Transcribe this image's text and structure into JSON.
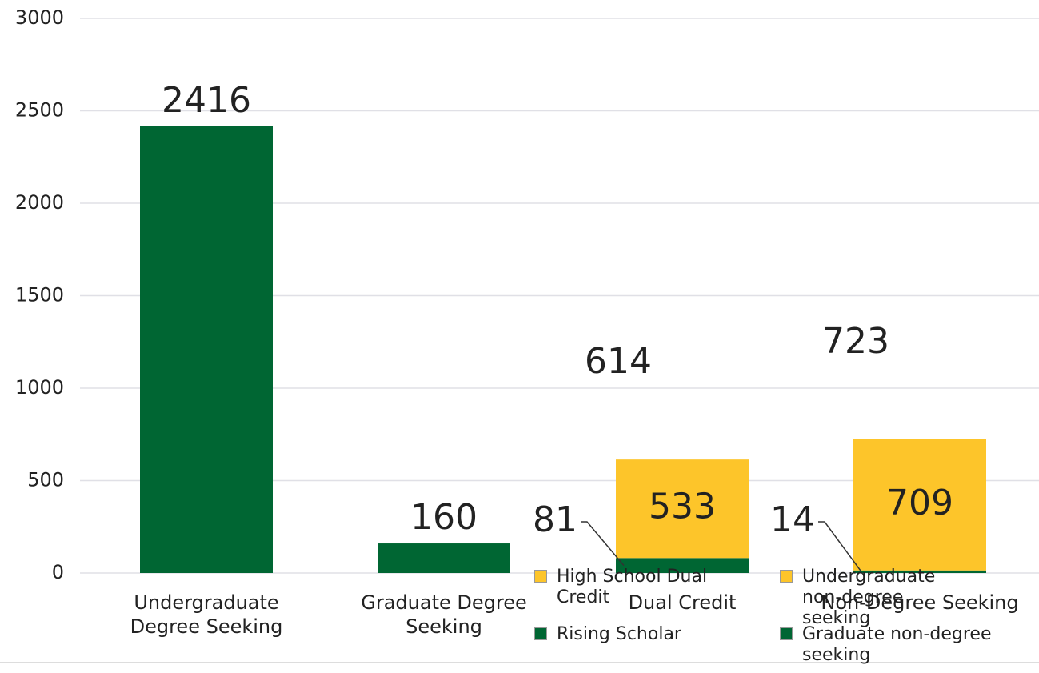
{
  "chart_data": {
    "type": "stacked_bar",
    "categories": [
      "Undergraduate Degree Seeking",
      "Graduate Degree Seeking",
      "Dual Credit",
      "Non-Degree Seeking"
    ],
    "series": [
      {
        "color": "#006633",
        "values": [
          2416,
          160,
          null,
          null
        ]
      },
      {
        "name": "Rising Scholar",
        "color": "#006633",
        "values": [
          null,
          null,
          81,
          null
        ]
      },
      {
        "name": "High School Dual Credit",
        "color": "#fdc52a",
        "values": [
          null,
          null,
          533,
          null
        ]
      },
      {
        "name": "Graduate non-degree seeking",
        "color": "#006633",
        "values": [
          null,
          null,
          null,
          14
        ]
      },
      {
        "name": "Undergraduate non-degree seeking",
        "color": "#fdc52a",
        "values": [
          null,
          null,
          null,
          709
        ]
      }
    ],
    "totals": [
      null,
      null,
      614,
      723
    ],
    "ylim": [
      0,
      3000
    ],
    "yticks": [
      0,
      500,
      1000,
      1500,
      2000,
      2500,
      3000
    ],
    "grid": true
  }
}
